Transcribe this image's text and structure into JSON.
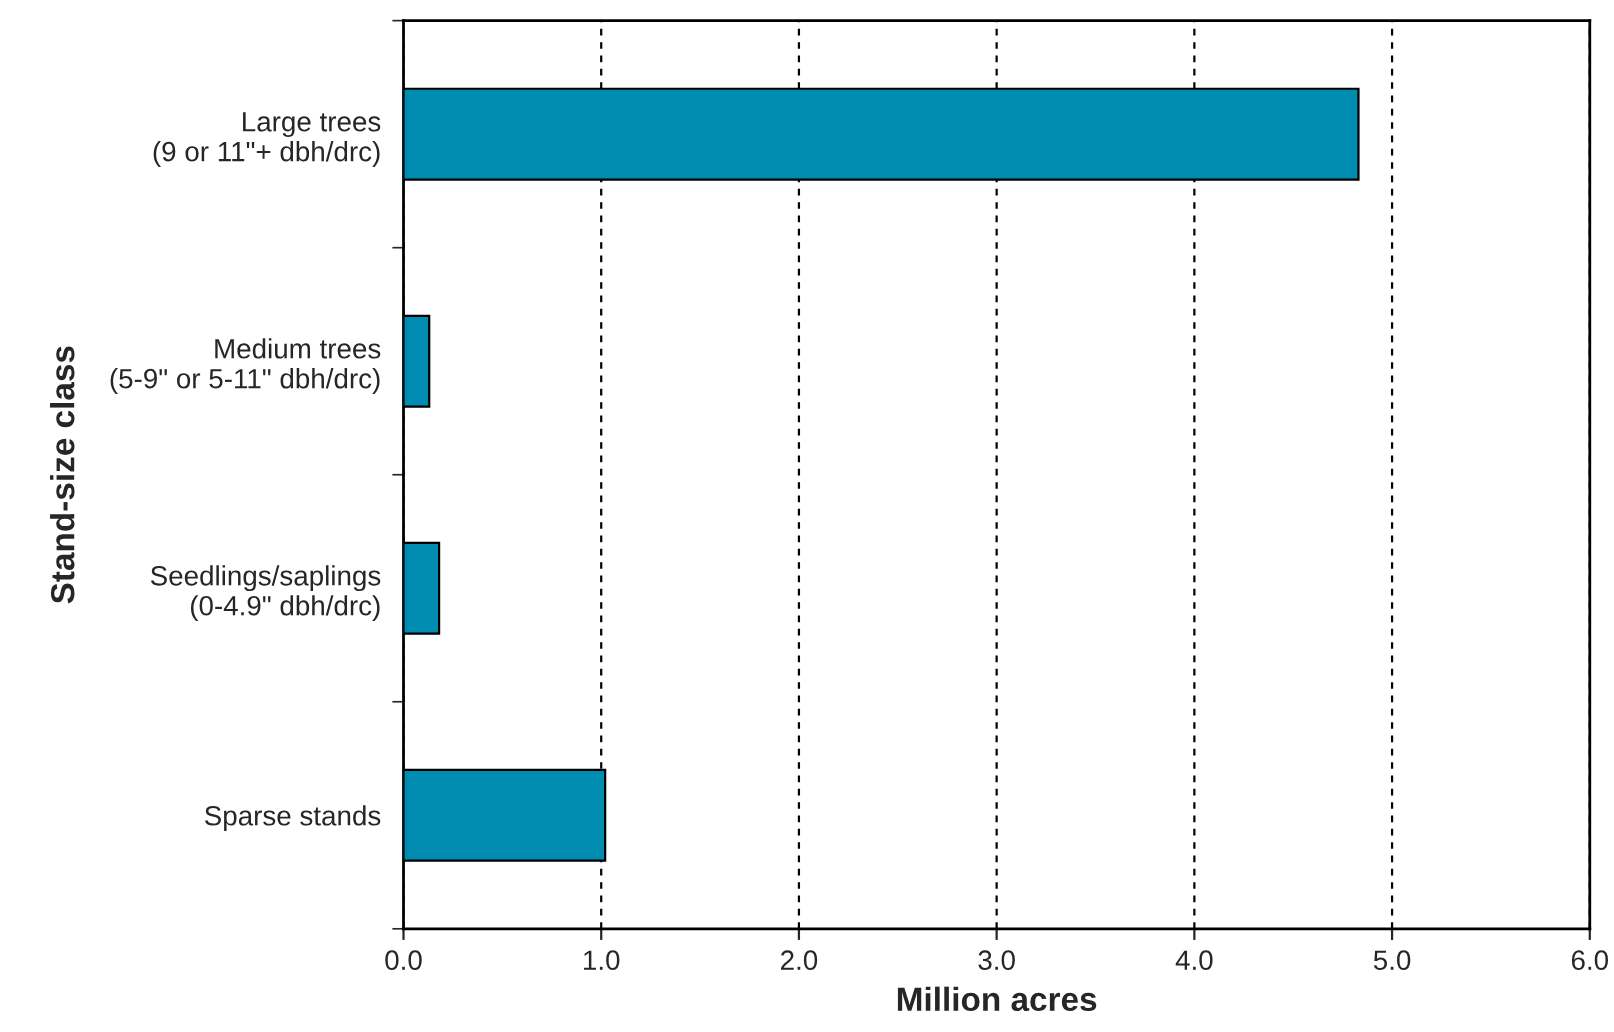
{
  "chart_data": {
    "type": "bar",
    "orientation": "horizontal",
    "categories": [
      "Large trees\n(9 or 11\"+ dbh/drc)",
      "Medium trees\n(5-9\" or 5-11\" dbh/drc)",
      "Seedlings/saplings\n(0-4.9\" dbh/drc)",
      "Sparse stands"
    ],
    "values": [
      4.83,
      0.13,
      0.18,
      1.02
    ],
    "color": "#008bb0",
    "xlabel": "Million acres",
    "ylabel": "Stand-size class",
    "xlim": [
      0,
      6
    ],
    "xticks": [
      {
        "value": 0,
        "label": "0.0"
      },
      {
        "value": 1,
        "label": "1.0"
      },
      {
        "value": 2,
        "label": "2.0"
      },
      {
        "value": 3,
        "label": "3.0"
      },
      {
        "value": 4,
        "label": "4.0"
      },
      {
        "value": 5,
        "label": "5.0"
      },
      {
        "value": 6,
        "label": "6.0"
      }
    ],
    "grid": "x",
    "legend": false
  }
}
